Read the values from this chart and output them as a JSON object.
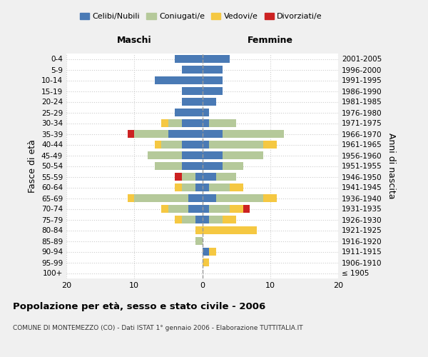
{
  "age_groups": [
    "100+",
    "95-99",
    "90-94",
    "85-89",
    "80-84",
    "75-79",
    "70-74",
    "65-69",
    "60-64",
    "55-59",
    "50-54",
    "45-49",
    "40-44",
    "35-39",
    "30-34",
    "25-29",
    "20-24",
    "15-19",
    "10-14",
    "5-9",
    "0-4"
  ],
  "birth_years": [
    "≤ 1905",
    "1906-1910",
    "1911-1915",
    "1916-1920",
    "1921-1925",
    "1926-1930",
    "1931-1935",
    "1936-1940",
    "1941-1945",
    "1946-1950",
    "1951-1955",
    "1956-1960",
    "1961-1965",
    "1966-1970",
    "1971-1975",
    "1976-1980",
    "1981-1985",
    "1986-1990",
    "1991-1995",
    "1996-2000",
    "2001-2005"
  ],
  "colors": {
    "celibi": "#4a7ab5",
    "coniugati": "#b5c99a",
    "vedovi": "#f5c842",
    "divorziati": "#cc2222"
  },
  "maschi": {
    "celibi": [
      0,
      0,
      0,
      0,
      0,
      1,
      2,
      2,
      1,
      1,
      3,
      3,
      3,
      5,
      3,
      4,
      3,
      3,
      7,
      3,
      4
    ],
    "coniugati": [
      0,
      0,
      0,
      1,
      0,
      2,
      3,
      8,
      2,
      2,
      4,
      5,
      3,
      5,
      2,
      0,
      0,
      0,
      0,
      0,
      0
    ],
    "vedovi": [
      0,
      0,
      0,
      0,
      1,
      1,
      1,
      1,
      1,
      0,
      0,
      0,
      1,
      0,
      1,
      0,
      0,
      0,
      0,
      0,
      0
    ],
    "divorziati": [
      0,
      0,
      0,
      0,
      0,
      0,
      0,
      0,
      0,
      1,
      0,
      0,
      0,
      1,
      0,
      0,
      0,
      0,
      0,
      0,
      0
    ]
  },
  "femmine": {
    "celibi": [
      0,
      0,
      1,
      0,
      0,
      1,
      1,
      2,
      1,
      2,
      3,
      3,
      1,
      3,
      1,
      1,
      2,
      3,
      3,
      3,
      4
    ],
    "coniugati": [
      0,
      0,
      0,
      0,
      0,
      2,
      3,
      7,
      3,
      3,
      3,
      6,
      8,
      9,
      4,
      0,
      0,
      0,
      0,
      0,
      0
    ],
    "vedovi": [
      0,
      1,
      1,
      0,
      8,
      2,
      2,
      2,
      2,
      0,
      0,
      0,
      2,
      0,
      0,
      0,
      0,
      0,
      0,
      0,
      0
    ],
    "divorziati": [
      0,
      0,
      0,
      0,
      0,
      0,
      1,
      0,
      0,
      0,
      0,
      0,
      0,
      0,
      0,
      0,
      0,
      0,
      0,
      0,
      0
    ]
  },
  "xlim": 20,
  "title": "Popolazione per età, sesso e stato civile - 2006",
  "subtitle": "COMUNE DI MONTEMEZZO (CO) - Dati ISTAT 1° gennaio 2006 - Elaborazione TUTTITALIA.IT",
  "ylabel_left": "Fasce di età",
  "ylabel_right": "Anni di nascita",
  "xlabel_left": "Maschi",
  "xlabel_right": "Femmine",
  "bg_color": "#f0f0f0",
  "plot_bg": "#ffffff"
}
